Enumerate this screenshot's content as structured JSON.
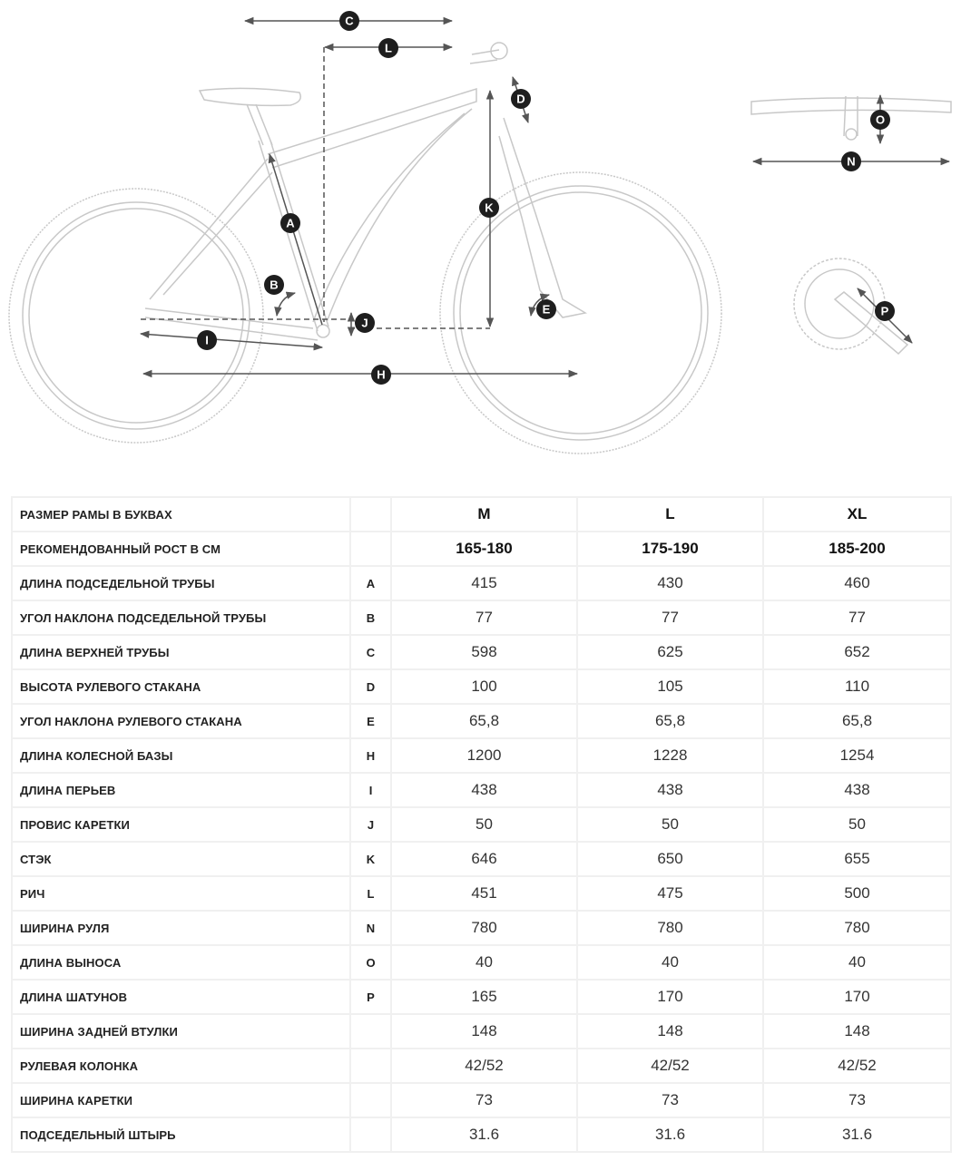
{
  "diagram": {
    "labels": {
      "A": "A",
      "B": "B",
      "C": "C",
      "D": "D",
      "E": "E",
      "H": "H",
      "I": "I",
      "J": "J",
      "K": "K",
      "L": "L",
      "N": "N",
      "O": "O",
      "P": "P"
    },
    "line_color": "#c8c8c8",
    "arrow_color": "#555555",
    "badge_color": "#1e1e1e"
  },
  "table": {
    "sizes": [
      "M",
      "L",
      "XL"
    ],
    "rows": [
      {
        "label": "РАЗМЕР РАМЫ В БУКВАХ",
        "letter": "",
        "values": [
          "M",
          "L",
          "XL"
        ],
        "head": true
      },
      {
        "label": "РЕКОМЕНДОВАННЫЙ РОСТ В СМ",
        "letter": "",
        "values": [
          "165-180",
          "175-190",
          "185-200"
        ],
        "head": true
      },
      {
        "label": "ДЛИНА ПОДСЕДЕЛЬНОЙ ТРУБЫ",
        "letter": "A",
        "values": [
          "415",
          "430",
          "460"
        ]
      },
      {
        "label": "УГОЛ НАКЛОНА ПОДСЕДЕЛЬНОЙ ТРУБЫ",
        "letter": "B",
        "values": [
          "77",
          "77",
          "77"
        ]
      },
      {
        "label": "ДЛИНА ВЕРХНЕЙ ТРУБЫ",
        "letter": "C",
        "values": [
          "598",
          "625",
          "652"
        ]
      },
      {
        "label": "ВЫСОТА РУЛЕВОГО СТАКАНА",
        "letter": "D",
        "values": [
          "100",
          "105",
          "110"
        ]
      },
      {
        "label": "УГОЛ НАКЛОНА РУЛЕВОГО СТАКАНА",
        "letter": "E",
        "values": [
          "65,8",
          "65,8",
          "65,8"
        ]
      },
      {
        "label": "ДЛИНА КОЛЕСНОЙ БАЗЫ",
        "letter": "H",
        "values": [
          "1200",
          "1228",
          "1254"
        ]
      },
      {
        "label": "ДЛИНА ПЕРЬЕВ",
        "letter": "I",
        "values": [
          "438",
          "438",
          "438"
        ]
      },
      {
        "label": "ПРОВИС КАРЕТКИ",
        "letter": "J",
        "values": [
          "50",
          "50",
          "50"
        ]
      },
      {
        "label": "СТЭК",
        "letter": "K",
        "values": [
          "646",
          "650",
          "655"
        ]
      },
      {
        "label": "РИЧ",
        "letter": "L",
        "values": [
          "451",
          "475",
          "500"
        ]
      },
      {
        "label": "ШИРИНА РУЛЯ",
        "letter": "N",
        "values": [
          "780",
          "780",
          "780"
        ]
      },
      {
        "label": "ДЛИНА ВЫНОСА",
        "letter": "O",
        "values": [
          "40",
          "40",
          "40"
        ]
      },
      {
        "label": "ДЛИНА ШАТУНОВ",
        "letter": "P",
        "values": [
          "165",
          "170",
          "170"
        ]
      },
      {
        "label": "ШИРИНА ЗАДНЕЙ ВТУЛКИ",
        "letter": "",
        "values": [
          "148",
          "148",
          "148"
        ]
      },
      {
        "label": "РУЛЕВАЯ КОЛОНКА",
        "letter": "",
        "values": [
          "42/52",
          "42/52",
          "42/52"
        ]
      },
      {
        "label": "ШИРИНА КАРЕТКИ",
        "letter": "",
        "values": [
          "73",
          "73",
          "73"
        ]
      },
      {
        "label": "ПОДСЕДЕЛЬНЫЙ ШТЫРЬ",
        "letter": "",
        "values": [
          "31.6",
          "31.6",
          "31.6"
        ]
      }
    ]
  }
}
